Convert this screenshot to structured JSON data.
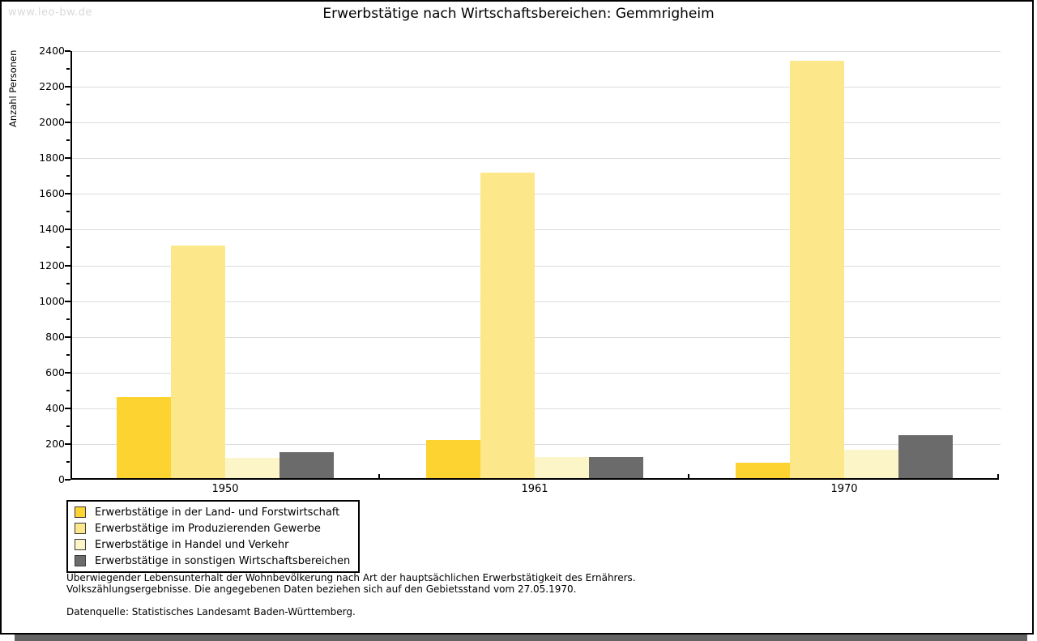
{
  "watermark": "www.leo-bw.de",
  "title": "Erwerbstätige nach Wirtschaftsbereichen: Gemmrigheim",
  "chart_data": {
    "type": "bar",
    "title": "Erwerbstätige nach Wirtschaftsbereichen: Gemmrigheim",
    "xlabel": "",
    "ylabel": "Anzahl Personen",
    "ylim": [
      0,
      2400
    ],
    "ytick_step": 200,
    "ytick_minor_step": 100,
    "grid": true,
    "legend_position": "bottom-left",
    "categories": [
      "1950",
      "1961",
      "1970"
    ],
    "series": [
      {
        "name": "Erwerbstätige in der Land- und Forstwirtschaft",
        "color": "#FCD330",
        "values": [
          455,
          212,
          88
        ]
      },
      {
        "name": "Erwerbstätige im Produzierenden Gewerbe",
        "color": "#FCE88B",
        "values": [
          1300,
          1712,
          2335
        ]
      },
      {
        "name": "Erwerbstätige in Handel und Verkehr",
        "color": "#FCF5C8",
        "values": [
          112,
          120,
          160
        ]
      },
      {
        "name": "Erwerbstätige in sonstigen Wirtschaftsbereichen",
        "color": "#6B6B6B",
        "values": [
          145,
          120,
          240
        ]
      }
    ]
  },
  "footer": {
    "line1": "Überwiegender Lebensunterhalt der Wohnbevölkerung nach Art der hauptsächlichen Erwerbstätigkeit des Ernährers.",
    "line2": "Volkszählungsergebnisse. Die angegebenen Daten beziehen sich auf den Gebietsstand vom 27.05.1970.",
    "source": "Datenquelle: Statistisches Landesamt Baden-Württemberg."
  }
}
